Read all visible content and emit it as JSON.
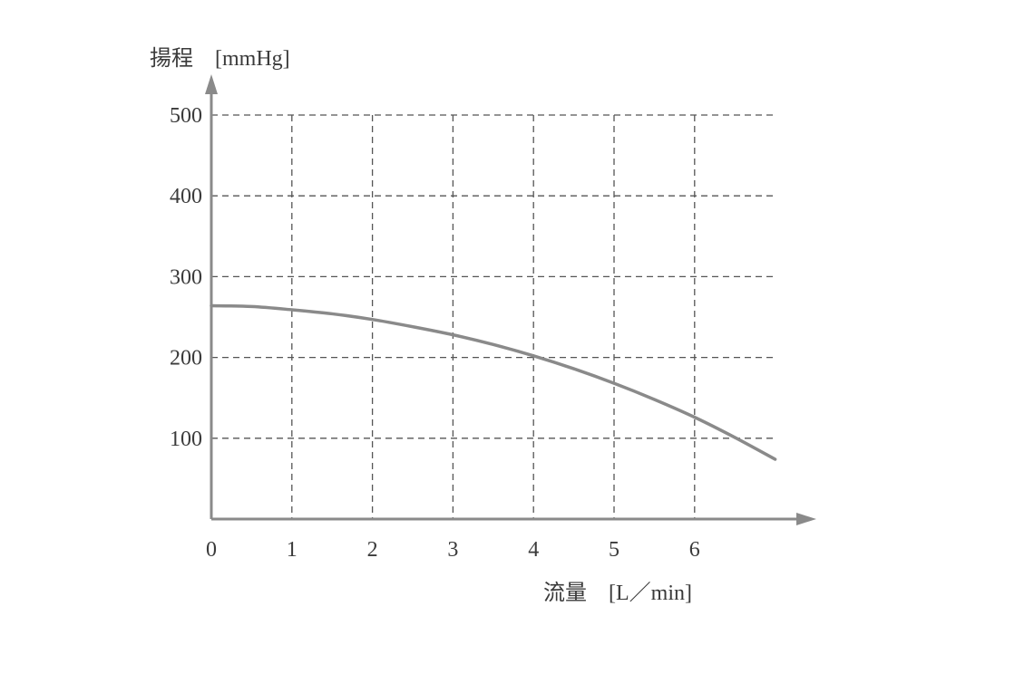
{
  "chart_data": {
    "type": "line",
    "ylabel": "揚程　[mmHg]",
    "xlabel": "流量　[L／min]",
    "x_ticks": [
      "0",
      "1",
      "2",
      "3",
      "4",
      "5",
      "6"
    ],
    "y_ticks": [
      "100",
      "200",
      "300",
      "400",
      "500"
    ],
    "xlim": [
      0,
      7.5
    ],
    "ylim": [
      0,
      500
    ],
    "grid": true,
    "grid_style": "dashed",
    "colors": {
      "curve": "#8a8a8a",
      "axis": "#8a8a8a",
      "grid": "#555555",
      "text": "#3a3a3a"
    },
    "series": [
      {
        "x": [
          0,
          0.5,
          1,
          1.5,
          2,
          2.5,
          3,
          3.5,
          4,
          4.5,
          5,
          5.5,
          6,
          6.5,
          7
        ],
        "values": [
          264,
          263,
          259,
          254,
          247,
          238,
          228,
          216,
          202,
          186,
          168,
          148,
          126,
          101,
          74
        ]
      }
    ]
  }
}
